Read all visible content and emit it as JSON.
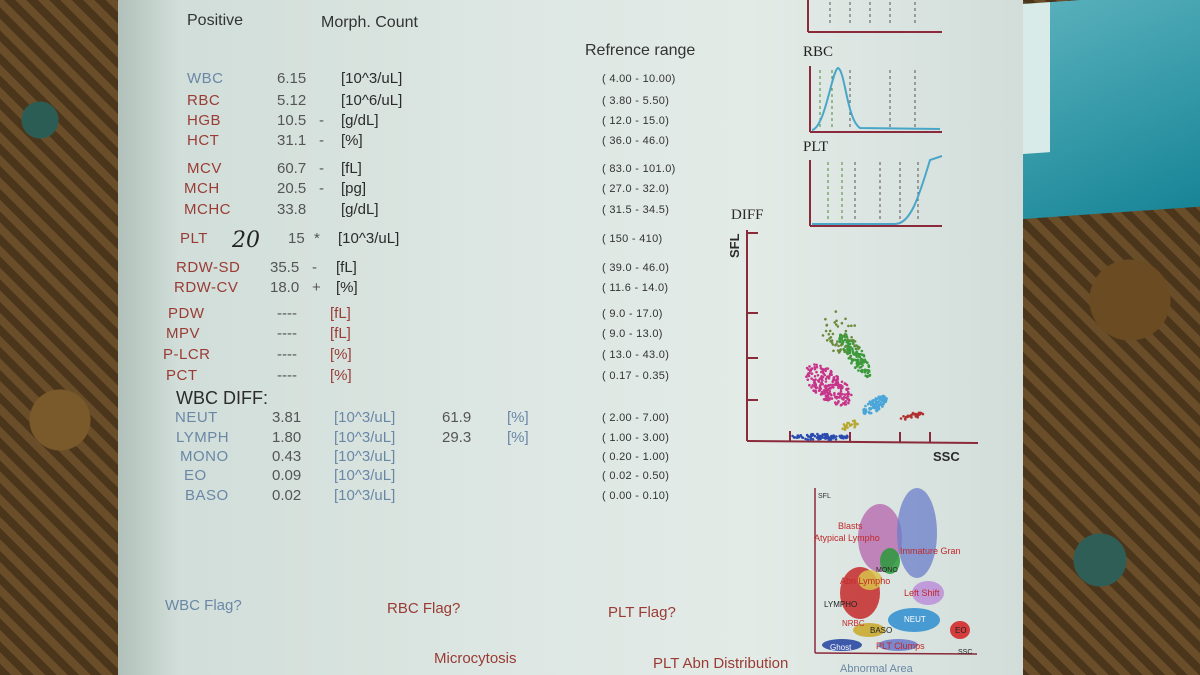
{
  "header": {
    "positive": "Positive",
    "morph_count": "Morph. Count",
    "reference_range": "Refrence range"
  },
  "params": [
    {
      "name": "WBC",
      "value": "6.15",
      "flag": "",
      "unit": "[10^3/uL]",
      "range": "( 4.00 - 10.00)",
      "color": "blue"
    },
    {
      "name": "RBC",
      "value": "5.12",
      "flag": "",
      "unit": "[10^6/uL]",
      "range": "( 3.80 - 5.50)",
      "color": "red"
    },
    {
      "name": "HGB",
      "value": "10.5",
      "flag": "-",
      "unit": "[g/dL]",
      "range": "( 12.0 - 15.0)",
      "color": "red"
    },
    {
      "name": "HCT",
      "value": "31.1",
      "flag": "-",
      "unit": "[%]",
      "range": "( 36.0 - 46.0)",
      "color": "red"
    },
    {
      "name": "MCV",
      "value": "60.7",
      "flag": "-",
      "unit": "[fL]",
      "range": "( 83.0 - 101.0)",
      "color": "red"
    },
    {
      "name": "MCH",
      "value": "20.5",
      "flag": "-",
      "unit": "[pg]",
      "range": "( 27.0 - 32.0)",
      "color": "red"
    },
    {
      "name": "MCHC",
      "value": "33.8",
      "flag": "",
      "unit": "[g/dL]",
      "range": "( 31.5 - 34.5)",
      "color": "red"
    },
    {
      "name": "PLT",
      "value": "15",
      "flag": "*",
      "unit": "[10^3/uL]",
      "range": "( 150 - 410)",
      "color": "red",
      "handwritten": "20"
    },
    {
      "name": "RDW-SD",
      "value": "35.5",
      "flag": "-",
      "unit": "[fL]",
      "range": "( 39.0 - 46.0)",
      "color": "red"
    },
    {
      "name": "RDW-CV",
      "value": "18.0",
      "flag": "+",
      "unit": "[%]",
      "range": "( 11.6 - 14.0)",
      "color": "red"
    },
    {
      "name": "PDW",
      "value": "----",
      "flag": "",
      "unit": "[fL]",
      "range": "( 9.0 - 17.0)",
      "color": "red"
    },
    {
      "name": "MPV",
      "value": "----",
      "flag": "",
      "unit": "[fL]",
      "range": "( 9.0 - 13.0)",
      "color": "red"
    },
    {
      "name": "P-LCR",
      "value": "----",
      "flag": "",
      "unit": "[%]",
      "range": "( 13.0 - 43.0)",
      "color": "red"
    },
    {
      "name": "PCT",
      "value": "----",
      "flag": "",
      "unit": "[%]",
      "range": "( 0.17 - 0.35)",
      "color": "red"
    }
  ],
  "wbc_diff": {
    "title": "WBC DIFF:",
    "rows": [
      {
        "name": "NEUT",
        "value": "3.81",
        "unit": "[10^3/uL]",
        "pct": "61.9",
        "pct_unit": "[%]",
        "range": "( 2.00 - 7.00)"
      },
      {
        "name": "LYMPH",
        "value": "1.80",
        "unit": "[10^3/uL]",
        "pct": "29.3",
        "pct_unit": "[%]",
        "range": "( 1.00 - 3.00)"
      },
      {
        "name": "MONO",
        "value": "0.43",
        "unit": "[10^3/uL]",
        "pct": "",
        "pct_unit": "",
        "range": "( 0.20 - 1.00)"
      },
      {
        "name": "EO",
        "value": "0.09",
        "unit": "[10^3/uL]",
        "pct": "",
        "pct_unit": "",
        "range": "( 0.02 - 0.50)"
      },
      {
        "name": "BASO",
        "value": "0.02",
        "unit": "[10^3/uL]",
        "pct": "",
        "pct_unit": "",
        "range": "( 0.00 - 0.10)"
      }
    ]
  },
  "flags": {
    "wbc": "WBC Flag?",
    "rbc": "RBC Flag?",
    "plt": "PLT Flag?",
    "rbc_msg": "Microcytosis",
    "plt_msg": "PLT Abn Distribution"
  },
  "graphs": {
    "rbc_title": "RBC",
    "plt_title": "PLT",
    "diff_title": "DIFF",
    "sfl_axis": "SFL",
    "ssc_axis": "SSC"
  },
  "legend_map": {
    "sfl": "SFL",
    "ssc": "SSC",
    "blasts": "Blasts",
    "atypical": "Atypical Lympho",
    "immature": "Immature Gran",
    "mono": "MONO",
    "abn_lympho": "Abn Lympho",
    "left_shift": "Left Shift",
    "lympho": "LYMPHO",
    "neut": "NEUT",
    "nrbc": "NRBC",
    "baso": "BASO",
    "eo": "EO",
    "ghost": "Ghost",
    "plt_clumps": "PLT Clumps",
    "abnormal_area": "Abnormal Area"
  },
  "colors": {
    "blue_label": "#6a87a6",
    "red_label": "#9a3b35",
    "teal": "#1e8fa0"
  }
}
